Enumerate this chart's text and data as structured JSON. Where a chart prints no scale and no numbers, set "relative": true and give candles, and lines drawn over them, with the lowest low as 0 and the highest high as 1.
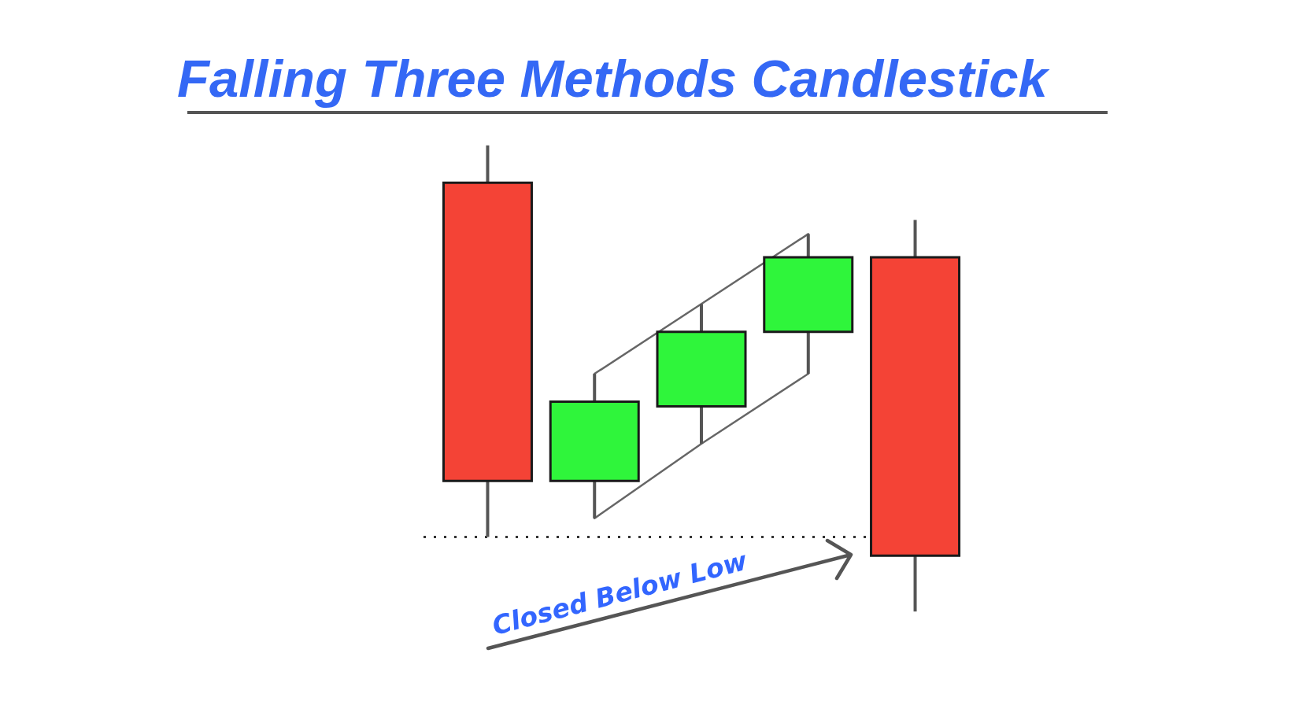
{
  "chart_data": {
    "type": "candlestick",
    "title": "Falling Three Methods Candlestick",
    "relative": true,
    "categories": [
      null,
      null,
      null,
      null,
      null
    ],
    "ohlc": [
      [
        0.92,
        1,
        0.16,
        0.28
      ],
      [
        0.28,
        0.51,
        0.2,
        0.45
      ],
      [
        0.44,
        0.66,
        0.36,
        0.6
      ],
      [
        0.6,
        0.81,
        0.51,
        0.76
      ],
      [
        0.76,
        0.84,
        0,
        0.12
      ]
    ],
    "colors": [
      "#f44336",
      "#2ff53b",
      "#2ff53b",
      "#2ff53b",
      "#f44336"
    ],
    "series": [
      {
        "type": "line",
        "color": "#666666",
        "values": [
          null,
          0.51,
          0.66,
          0.81,
          null
        ]
      },
      {
        "type": "line",
        "color": "#666666",
        "values": [
          null,
          0.2,
          0.36,
          0.51,
          null
        ]
      }
    ],
    "ref_lines": [
      {
        "axis": "y",
        "value": 0.16,
        "color": "#333333",
        "line_style": "dotted"
      }
    ],
    "annotations": [
      "Closed Below Low"
    ]
  }
}
